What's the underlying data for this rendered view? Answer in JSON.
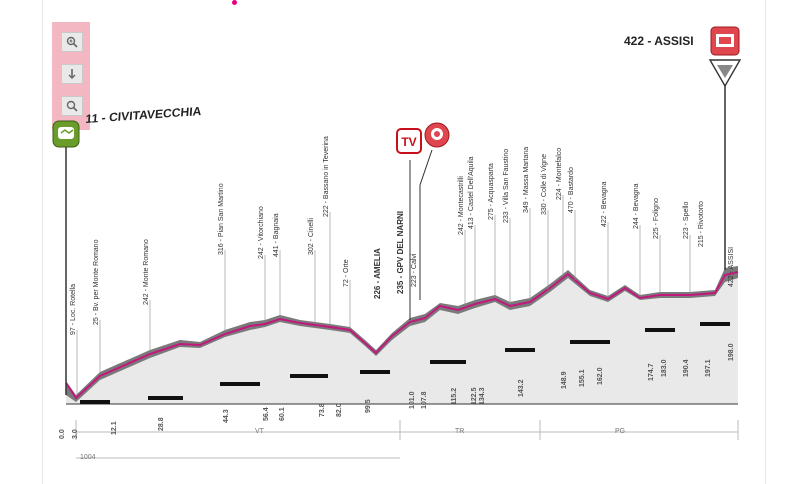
{
  "zoom_panel": {
    "buttons": [
      {
        "name": "zoom-in-button",
        "icon": "magnifier-plus-icon"
      },
      {
        "name": "zoom-down-button",
        "icon": "arrow-down-icon"
      },
      {
        "name": "zoom-reset-button",
        "icon": "magnifier-icon"
      }
    ]
  },
  "start": {
    "label": "11 - CIVITAVECCHIA"
  },
  "finish": {
    "label": "422 - ASSISI"
  },
  "colors": {
    "profile_fill": "#bfbfbf",
    "route_line": "#c2187d",
    "pink_panel": "#f2b7c3",
    "accent": "#e6007e"
  },
  "markers": {
    "tv_badge": "TV",
    "sprint_badge": "sprint-icon",
    "finish_badge": "finish-flag-icon",
    "start_badge": "start-flag-icon"
  },
  "climb_labels": [
    "97 - Loc. Rotella",
    "25 - Bv. per Monte Romano",
    "242 - Monte Romano",
    "316 - Pian San Martino",
    "242 - Vitorchiano",
    "441 - Bagnaia",
    "302 - Cinelli",
    "222 - Bassano in Teverina",
    "72 - Orte",
    "226 - AMELIA",
    "235 - GPV DEL NARNI",
    "223 - Calvi",
    "242 - Montecastrilli",
    "413 - Castel Dell'Aquila",
    "275 - Acquasparta",
    "233 - Villa San Faustino",
    "349 - Massa Martana",
    "330 - Colle di Vigne",
    "224 - Montefalco",
    "470 - Bastardo",
    "422 - Bevagna",
    "244 - Bevagna",
    "225 - Foligno",
    "223 - Spello",
    "215 - Rivotorto",
    "422 - ASSISI"
  ],
  "km_labels": [
    "0.0",
    "3.0",
    "12.1",
    "28.8",
    "44.3",
    "56.4",
    "60.1",
    "73.8",
    "82.0",
    "99.5",
    "101.0",
    "107.8",
    "115.2",
    "122.5",
    "134.3",
    "143.2",
    "148.9",
    "155.1",
    "162.0",
    "174.7",
    "183.0",
    "190.4",
    "197.1",
    "198.0"
  ],
  "bottom_scale": {
    "left": "1004",
    "segments": [
      "VT",
      "TR",
      "PG"
    ]
  }
}
